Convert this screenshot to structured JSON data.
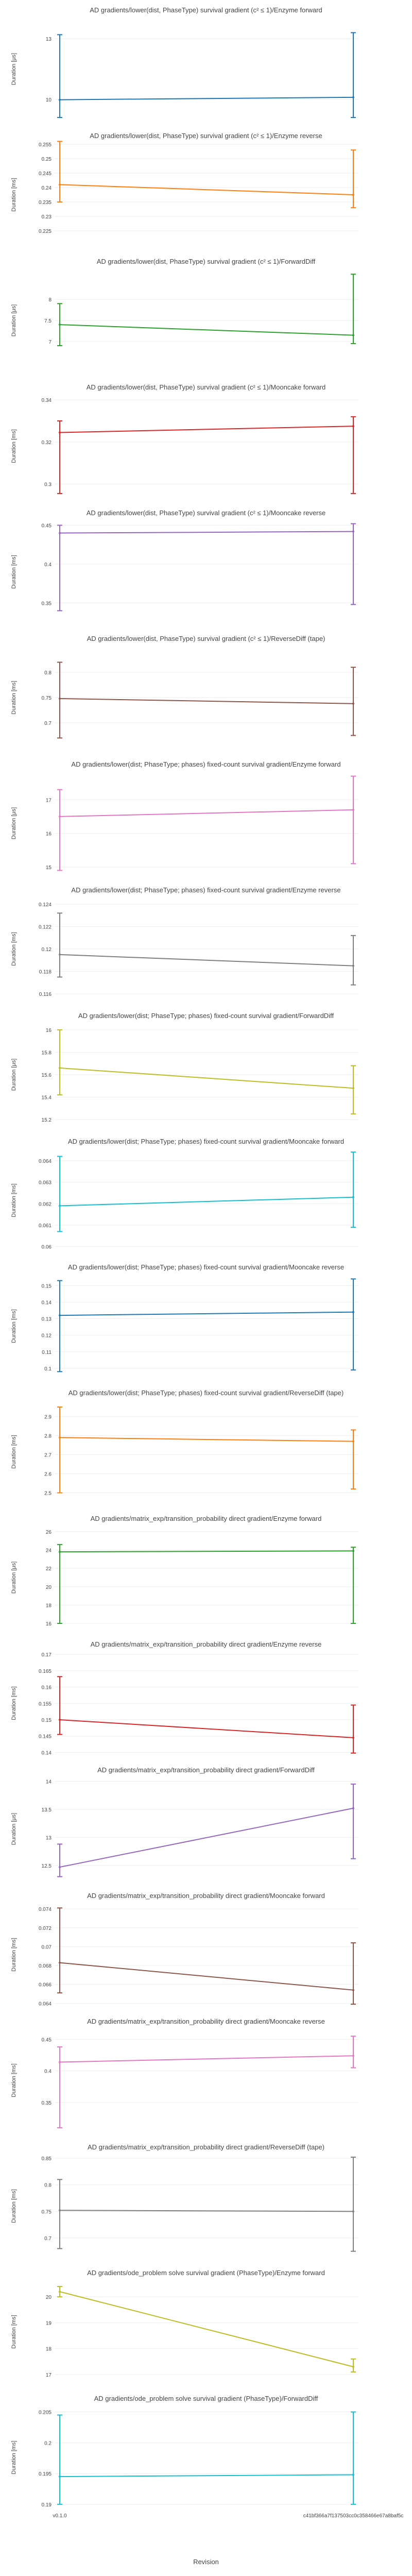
{
  "x_axis": {
    "title": "Revision",
    "tick_labels": [
      "v0.1.0",
      "c41bf366a7f137503cc0c358466e67a8baf5c"
    ]
  },
  "chart_data": [
    {
      "type": "line",
      "title": "AD gradients/lower(dist, PhaseType) survival gradient (c² ≤ 1)/Enzyme forward",
      "ylabel": "Duration [μs]",
      "color": "#1f77b4",
      "ylim": [
        9,
        14
      ],
      "yticks": [
        10,
        13
      ],
      "x": [
        "v0.1.0",
        "c41bf366a7f137503cc0c358466e67a8baf5c"
      ],
      "values": [
        9.98,
        10.1
      ],
      "err_low": [
        9.1,
        9.1
      ],
      "err_high": [
        13.2,
        13.3
      ]
    },
    {
      "type": "line",
      "title": "AD gradients/lower(dist, PhaseType) survival gradient (c² ≤ 1)/Enzyme reverse",
      "ylabel": "Duration [ms]",
      "color": "#ff7f0e",
      "ylim": [
        0.22,
        0.255
      ],
      "yticks": [
        0.225,
        0.23,
        0.235,
        0.24,
        0.245,
        0.25,
        0.255
      ],
      "x": [
        "v0.1.0",
        "c41bf366a7f137503cc0c358466e67a8baf5c"
      ],
      "values": [
        0.241,
        0.2375
      ],
      "err_low": [
        0.235,
        0.233
      ],
      "err_high": [
        0.256,
        0.253
      ]
    },
    {
      "type": "line",
      "title": "AD gradients/lower(dist, PhaseType) survival gradient (c² ≤ 1)/ForwardDiff",
      "ylabel": "Duration [μs]",
      "color": "#2ca02c",
      "ylim": [
        6.3,
        8.7
      ],
      "yticks": [
        7,
        7.5,
        8
      ],
      "x": [
        "v0.1.0",
        "c41bf366a7f137503cc0c358466e67a8baf5c"
      ],
      "values": [
        7.4,
        7.15
      ],
      "err_low": [
        6.9,
        6.95
      ],
      "err_high": [
        7.9,
        8.6
      ]
    },
    {
      "type": "line",
      "title": "AD gradients/lower(dist, PhaseType) survival gradient (c² ≤ 1)/Mooncake forward",
      "ylabel": "Duration [ms]",
      "color": "#d62728",
      "ylim": [
        0.294,
        0.342
      ],
      "yticks": [
        0.3,
        0.32,
        0.34
      ],
      "x": [
        "v0.1.0",
        "c41bf366a7f137503cc0c358466e67a8baf5c"
      ],
      "values": [
        0.3245,
        0.3275
      ],
      "err_low": [
        0.2955,
        0.2955
      ],
      "err_high": [
        0.33,
        0.332
      ]
    },
    {
      "type": "line",
      "title": "AD gradients/lower(dist, PhaseType) survival gradient (c² ≤ 1)/Mooncake reverse",
      "ylabel": "Duration [ms]",
      "color": "#9467bd",
      "ylim": [
        0.325,
        0.455
      ],
      "yticks": [
        0.35,
        0.4,
        0.45
      ],
      "x": [
        "v0.1.0",
        "c41bf366a7f137503cc0c358466e67a8baf5c"
      ],
      "values": [
        0.44,
        0.442
      ],
      "err_low": [
        0.34,
        0.348
      ],
      "err_high": [
        0.45,
        0.452
      ]
    },
    {
      "type": "line",
      "title": "AD gradients/lower(dist, PhaseType) survival gradient (c² ≤ 1)/ReverseDiff (tape)",
      "ylabel": "Duration [ms]",
      "color": "#8c564b",
      "ylim": [
        0.65,
        0.85
      ],
      "yticks": [
        0.7,
        0.75,
        0.8
      ],
      "x": [
        "v0.1.0",
        "c41bf366a7f137503cc0c358466e67a8baf5c"
      ],
      "values": [
        0.748,
        0.738
      ],
      "err_low": [
        0.67,
        0.675
      ],
      "err_high": [
        0.82,
        0.81
      ]
    },
    {
      "type": "line",
      "title": "AD gradients/lower(dist; PhaseType; phases) fixed-count survival gradient/Enzyme forward",
      "ylabel": "Duration [μs]",
      "color": "#e377c2",
      "ylim": [
        14.8,
        17.8
      ],
      "yticks": [
        15,
        16,
        17
      ],
      "x": [
        "v0.1.0",
        "c41bf366a7f137503cc0c358466e67a8baf5c"
      ],
      "values": [
        16.5,
        16.7
      ],
      "err_low": [
        14.9,
        15.1
      ],
      "err_high": [
        17.3,
        17.7
      ]
    },
    {
      "type": "line",
      "title": "AD gradients/lower(dist; PhaseType; phases) fixed-count survival gradient/Enzyme reverse",
      "ylabel": "Duration [ms]",
      "color": "#7f7f7f",
      "ylim": [
        0.1155,
        0.1245
      ],
      "yticks": [
        0.116,
        0.118,
        0.12,
        0.122,
        0.124
      ],
      "x": [
        "v0.1.0",
        "c41bf366a7f137503cc0c358466e67a8baf5c"
      ],
      "values": [
        0.1195,
        0.1185
      ],
      "err_low": [
        0.1175,
        0.1168
      ],
      "err_high": [
        0.1232,
        0.1212
      ]
    },
    {
      "type": "line",
      "title": "AD gradients/lower(dist; PhaseType; phases) fixed-count survival gradient/ForwardDiff",
      "ylabel": "Duration [μs]",
      "color": "#bcbd22",
      "ylim": [
        15.15,
        16.05
      ],
      "yticks": [
        15.2,
        15.4,
        15.6,
        15.8,
        16
      ],
      "x": [
        "v0.1.0",
        "c41bf366a7f137503cc0c358466e67a8baf5c"
      ],
      "values": [
        15.66,
        15.48
      ],
      "err_low": [
        15.42,
        15.25
      ],
      "err_high": [
        16.0,
        15.68
      ]
    },
    {
      "type": "line",
      "title": "AD gradients/lower(dist; PhaseType; phases) fixed-count survival gradient/Mooncake forward",
      "ylabel": "Duration [ms]",
      "color": "#17becf",
      "ylim": [
        0.0598,
        0.0645
      ],
      "yticks": [
        0.06,
        0.061,
        0.062,
        0.063,
        0.064
      ],
      "x": [
        "v0.1.0",
        "c41bf366a7f137503cc0c358466e67a8baf5c"
      ],
      "values": [
        0.0619,
        0.0623
      ],
      "err_low": [
        0.0607,
        0.0609
      ],
      "err_high": [
        0.0642,
        0.0644
      ]
    },
    {
      "type": "line",
      "title": "AD gradients/lower(dist; PhaseType; phases) fixed-count survival gradient/Mooncake reverse",
      "ylabel": "Duration [ms]",
      "color": "#1f77b4",
      "ylim": [
        0.095,
        0.156
      ],
      "yticks": [
        0.1,
        0.11,
        0.12,
        0.13,
        0.14,
        0.15
      ],
      "x": [
        "v0.1.0",
        "c41bf366a7f137503cc0c358466e67a8baf5c"
      ],
      "values": [
        0.132,
        0.134
      ],
      "err_low": [
        0.098,
        0.099
      ],
      "err_high": [
        0.153,
        0.154
      ]
    },
    {
      "type": "line",
      "title": "AD gradients/lower(dist; PhaseType; phases) fixed-count survival gradient/ReverseDiff (tape)",
      "ylabel": "Duration [ms]",
      "color": "#ff7f0e",
      "ylim": [
        2.45,
        2.98
      ],
      "yticks": [
        2.5,
        2.6,
        2.7,
        2.8,
        2.9
      ],
      "x": [
        "v0.1.0",
        "c41bf366a7f137503cc0c358466e67a8baf5c"
      ],
      "values": [
        2.79,
        2.77
      ],
      "err_low": [
        2.5,
        2.52
      ],
      "err_high": [
        2.95,
        2.83
      ]
    },
    {
      "type": "line",
      "title": "AD gradients/matrix_exp/transition_probability direct gradient/Enzyme forward",
      "ylabel": "Duration [μs]",
      "color": "#2ca02c",
      "ylim": [
        15.5,
        26.5
      ],
      "yticks": [
        16,
        18,
        20,
        22,
        24,
        26
      ],
      "x": [
        "v0.1.0",
        "c41bf366a7f137503cc0c358466e67a8baf5c"
      ],
      "values": [
        23.8,
        23.9
      ],
      "err_low": [
        16.0,
        16.0
      ],
      "err_high": [
        24.6,
        24.3
      ]
    },
    {
      "type": "line",
      "title": "AD gradients/matrix_exp/transition_probability direct gradient/Enzyme reverse",
      "ylabel": "Duration [ms]",
      "color": "#d62728",
      "ylim": [
        0.1396,
        0.1705
      ],
      "yticks": [
        0.14,
        0.145,
        0.15,
        0.155,
        0.16,
        0.165,
        0.17
      ],
      "x": [
        "v0.1.0",
        "c41bf366a7f137503cc0c358466e67a8baf5c"
      ],
      "values": [
        0.15,
        0.1445
      ],
      "err_low": [
        0.1455,
        0.1398
      ],
      "err_high": [
        0.1632,
        0.1545
      ]
    },
    {
      "type": "line",
      "title": "AD gradients/matrix_exp/transition_probability direct gradient/ForwardDiff",
      "ylabel": "Duration [μs]",
      "color": "#9467bd",
      "ylim": [
        12.25,
        14.05
      ],
      "yticks": [
        12.5,
        13,
        13.5,
        14
      ],
      "x": [
        "v0.1.0",
        "c41bf366a7f137503cc0c358466e67a8baf5c"
      ],
      "values": [
        12.47,
        13.52
      ],
      "err_low": [
        12.3,
        12.62
      ],
      "err_high": [
        12.88,
        13.95
      ]
    },
    {
      "type": "line",
      "title": "AD gradients/matrix_exp/transition_probability direct gradient/Mooncake forward",
      "ylabel": "Duration [ms]",
      "color": "#8c564b",
      "ylim": [
        0.0638,
        0.0745
      ],
      "yticks": [
        0.064,
        0.066,
        0.068,
        0.07,
        0.072,
        0.074
      ],
      "x": [
        "v0.1.0",
        "c41bf366a7f137503cc0c358466e67a8baf5c"
      ],
      "values": [
        0.0683,
        0.0654
      ],
      "err_low": [
        0.0651,
        0.0639
      ],
      "err_high": [
        0.0741,
        0.0704
      ]
    },
    {
      "type": "line",
      "title": "AD gradients/matrix_exp/transition_probability direct gradient/Mooncake reverse",
      "ylabel": "Duration [ms]",
      "color": "#e377c2",
      "ylim": [
        0.305,
        0.465
      ],
      "yticks": [
        0.35,
        0.4,
        0.45
      ],
      "x": [
        "v0.1.0",
        "c41bf366a7f137503cc0c358466e67a8baf5c"
      ],
      "values": [
        0.414,
        0.424
      ],
      "err_low": [
        0.31,
        0.405
      ],
      "err_high": [
        0.438,
        0.455
      ]
    },
    {
      "type": "line",
      "title": "AD gradients/matrix_exp/transition_probability direct gradient/ReverseDiff (tape)",
      "ylabel": "Duration [ms]",
      "color": "#7f7f7f",
      "ylim": [
        0.665,
        0.855
      ],
      "yticks": [
        0.7,
        0.75,
        0.8,
        0.85
      ],
      "x": [
        "v0.1.0",
        "c41bf366a7f137503cc0c358466e67a8baf5c"
      ],
      "values": [
        0.752,
        0.75
      ],
      "err_low": [
        0.68,
        0.675
      ],
      "err_high": [
        0.81,
        0.852
      ]
    },
    {
      "type": "line",
      "title": "AD gradients/ode_problem solve survival gradient (PhaseType)/Enzyme forward",
      "ylabel": "Duration [ms]",
      "color": "#bcbd22",
      "ylim": [
        16.7,
        20.6
      ],
      "yticks": [
        17,
        18,
        19,
        20
      ],
      "x": [
        "v0.1.0",
        "c41bf366a7f137503cc0c358466e67a8baf5c"
      ],
      "values": [
        20.2,
        17.3
      ],
      "err_low": [
        20.0,
        17.1
      ],
      "err_high": [
        20.4,
        17.6
      ]
    },
    {
      "type": "line",
      "title": "AD gradients/ode_problem solve survival gradient (PhaseType)/ForwardDiff",
      "ylabel": "Duration [ms]",
      "color": "#17becf",
      "ylim": [
        0.1894,
        0.2058
      ],
      "yticks": [
        0.19,
        0.195,
        0.2,
        0.205
      ],
      "x": [
        "v0.1.0",
        "c41bf366a7f137503cc0c358466e67a8baf5c"
      ],
      "values": [
        0.1945,
        0.1948
      ],
      "err_low": [
        0.19,
        0.19
      ],
      "err_high": [
        0.2045,
        0.205
      ]
    }
  ]
}
